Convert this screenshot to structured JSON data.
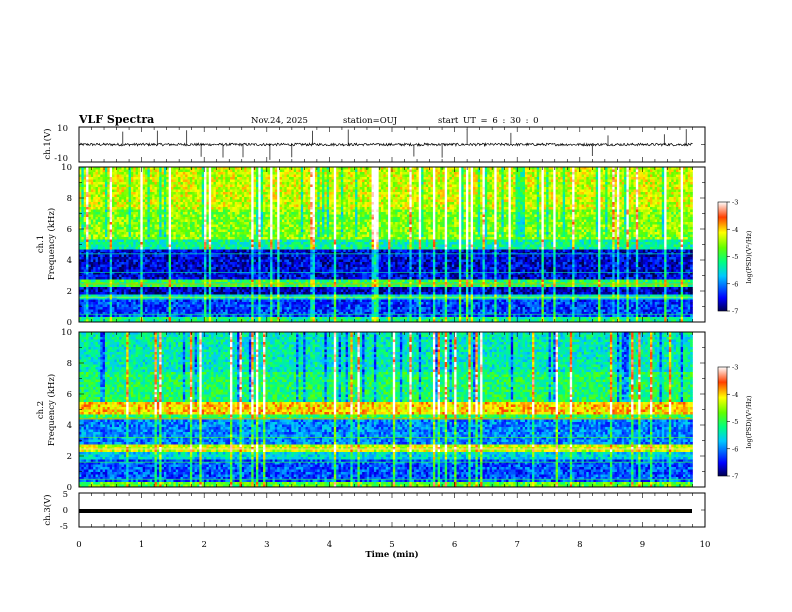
{
  "header": {
    "title": "VLF Spectra",
    "date": "Nov.24, 2025",
    "station": "station=OUJ",
    "start_ut": "start UT = 6 : 30 : 0"
  },
  "chart_data": [
    {
      "name": "ch1-waveform",
      "type": "line",
      "ylabel": "ch.1(V)",
      "ylim": [
        -10,
        10
      ],
      "y_ticklabels": [
        "10",
        "-10"
      ],
      "xlim": [
        0,
        10
      ],
      "baseline": 0,
      "typical_amplitude": 1.5,
      "spikes_x": [
        0.7,
        1.25,
        1.72,
        1.95,
        2.3,
        2.62,
        3.05,
        3.4,
        3.73,
        4.3,
        5.35,
        5.8,
        6.2,
        6.9,
        8.2,
        8.45,
        9.35,
        9.7
      ]
    },
    {
      "name": "ch1-spectrogram",
      "type": "heatmap",
      "ylabel": "Frequency (kHz)",
      "channel_label": "ch.1",
      "ylim": [
        0,
        10
      ],
      "y_ticklabels": [
        "0",
        "2",
        "4",
        "6",
        "8",
        "10"
      ],
      "xlim": [
        0,
        9.8
      ],
      "colorbar": {
        "label": "log(PSD)(V²/Hz)",
        "range": [
          -7,
          -3
        ],
        "ticklabels": [
          "-3",
          "-4",
          "-5",
          "-6",
          "-7"
        ]
      },
      "bands": [
        {
          "f": [
            0,
            0.3
          ],
          "level": -5.2
        },
        {
          "f": [
            0.3,
            1.5
          ],
          "level": -6.3
        },
        {
          "f": [
            1.5,
            1.8
          ],
          "level": -5.5
        },
        {
          "f": [
            1.8,
            2.2
          ],
          "level": -6.7
        },
        {
          "f": [
            2.2,
            2.7
          ],
          "level": -5.0
        },
        {
          "f": [
            2.7,
            4.6
          ],
          "level": -6.6
        },
        {
          "f": [
            4.6,
            5.4
          ],
          "level": -5.3
        },
        {
          "f": [
            5.4,
            7.2
          ],
          "level": -4.6
        },
        {
          "f": [
            7.2,
            10
          ],
          "level": -4.3
        }
      ]
    },
    {
      "name": "ch2-spectrogram",
      "type": "heatmap",
      "ylabel": "Frequency (kHz)",
      "channel_label": "ch.2",
      "ylim": [
        0,
        10
      ],
      "y_ticklabels": [
        "0",
        "2",
        "4",
        "6",
        "8",
        "10"
      ],
      "xlim": [
        0,
        9.8
      ],
      "colorbar": {
        "label": "log(PSD)(V²/Hz)",
        "range": [
          -7,
          -3
        ],
        "ticklabels": [
          "-3",
          "-4",
          "-5",
          "-6",
          "-7"
        ]
      },
      "bands": [
        {
          "f": [
            0,
            0.4
          ],
          "level": -4.8
        },
        {
          "f": [
            0.4,
            1.8
          ],
          "level": -6.2
        },
        {
          "f": [
            1.8,
            2.2
          ],
          "level": -5.6
        },
        {
          "f": [
            2.2,
            2.8
          ],
          "level": -4.3
        },
        {
          "f": [
            2.8,
            4.3
          ],
          "level": -6.0
        },
        {
          "f": [
            4.3,
            4.7
          ],
          "level": -5.0
        },
        {
          "f": [
            4.7,
            5.5
          ],
          "level": -4.0
        },
        {
          "f": [
            5.5,
            7.5
          ],
          "level": -5.1
        },
        {
          "f": [
            7.5,
            10
          ],
          "level": -5.4
        }
      ]
    },
    {
      "name": "ch3-waveform",
      "type": "line",
      "ylabel": "ch.3(V)",
      "ylim": [
        -5,
        5
      ],
      "y_ticklabels": [
        "5",
        "0",
        "-5"
      ],
      "xlim": [
        0,
        10
      ],
      "level": 0,
      "xlabel": "Time (min)",
      "x_ticklabels": [
        "0",
        "1",
        "2",
        "3",
        "4",
        "5",
        "6",
        "7",
        "8",
        "9",
        "10"
      ]
    }
  ]
}
